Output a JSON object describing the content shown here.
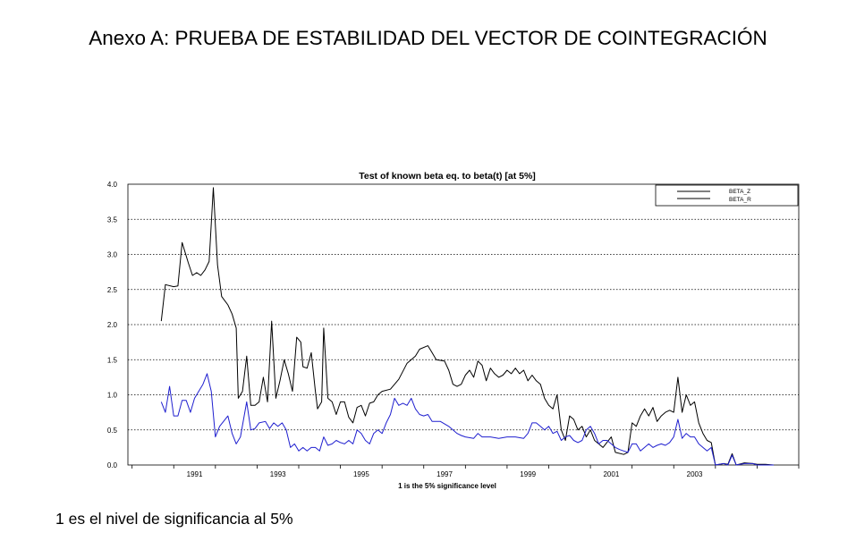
{
  "page": {
    "title": "Anexo A: PRUEBA DE ESTABILIDAD DEL VECTOR DE COINTEGRACIÓN",
    "footnote": "1 es el nivel de significancia al 5%"
  },
  "chart_data": {
    "type": "line",
    "title": "Test of known beta eq. to beta(t) [at 5%]",
    "xlabel": "1 is the 5% significance level",
    "ylabel": "",
    "xlim": [
      1989.9,
      2006.0
    ],
    "ylim": [
      0.0,
      4.0
    ],
    "yticks": [
      "0.0",
      "0.5",
      "1.0",
      "1.5",
      "2.0",
      "2.5",
      "3.0",
      "3.5",
      "4.0"
    ],
    "xticks": [
      "1991",
      "1993",
      "1995",
      "1997",
      "1999",
      "2001",
      "2003"
    ],
    "grid": "horizontal dotted",
    "legend_position": "top-right",
    "series": [
      {
        "name": "BETA_Z",
        "color": "#000000",
        "points": [
          [
            1990.7,
            2.05
          ],
          [
            1990.8,
            2.57
          ],
          [
            1991.0,
            2.54
          ],
          [
            1991.1,
            2.55
          ],
          [
            1991.2,
            3.17
          ],
          [
            1991.35,
            2.88
          ],
          [
            1991.45,
            2.7
          ],
          [
            1991.55,
            2.74
          ],
          [
            1991.65,
            2.7
          ],
          [
            1991.75,
            2.78
          ],
          [
            1991.85,
            2.9
          ],
          [
            1991.95,
            3.95
          ],
          [
            1992.05,
            2.85
          ],
          [
            1992.15,
            2.4
          ],
          [
            1992.3,
            2.28
          ],
          [
            1992.4,
            2.15
          ],
          [
            1992.5,
            1.95
          ],
          [
            1992.55,
            0.95
          ],
          [
            1992.65,
            1.05
          ],
          [
            1992.75,
            1.55
          ],
          [
            1992.85,
            0.85
          ],
          [
            1992.95,
            0.85
          ],
          [
            1993.05,
            0.9
          ],
          [
            1993.15,
            1.25
          ],
          [
            1993.25,
            0.9
          ],
          [
            1993.35,
            2.05
          ],
          [
            1993.45,
            0.95
          ],
          [
            1993.55,
            1.2
          ],
          [
            1993.65,
            1.5
          ],
          [
            1993.75,
            1.3
          ],
          [
            1993.85,
            1.05
          ],
          [
            1993.95,
            1.82
          ],
          [
            1994.05,
            1.75
          ],
          [
            1994.1,
            1.4
          ],
          [
            1994.2,
            1.38
          ],
          [
            1994.3,
            1.6
          ],
          [
            1994.4,
            1.05
          ],
          [
            1994.45,
            0.8
          ],
          [
            1994.55,
            0.9
          ],
          [
            1994.6,
            1.95
          ],
          [
            1994.7,
            0.95
          ],
          [
            1994.8,
            0.9
          ],
          [
            1994.9,
            0.72
          ],
          [
            1995.0,
            0.9
          ],
          [
            1995.1,
            0.9
          ],
          [
            1995.2,
            0.68
          ],
          [
            1995.3,
            0.6
          ],
          [
            1995.4,
            0.82
          ],
          [
            1995.5,
            0.85
          ],
          [
            1995.6,
            0.7
          ],
          [
            1995.7,
            0.88
          ],
          [
            1995.8,
            0.9
          ],
          [
            1995.9,
            1.0
          ],
          [
            1996.0,
            1.05
          ],
          [
            1996.2,
            1.08
          ],
          [
            1996.4,
            1.22
          ],
          [
            1996.6,
            1.45
          ],
          [
            1996.8,
            1.55
          ],
          [
            1996.9,
            1.65
          ],
          [
            1997.1,
            1.7
          ],
          [
            1997.2,
            1.6
          ],
          [
            1997.3,
            1.5
          ],
          [
            1997.5,
            1.48
          ],
          [
            1997.6,
            1.35
          ],
          [
            1997.7,
            1.15
          ],
          [
            1997.8,
            1.12
          ],
          [
            1997.9,
            1.15
          ],
          [
            1998.0,
            1.28
          ],
          [
            1998.1,
            1.35
          ],
          [
            1998.2,
            1.25
          ],
          [
            1998.3,
            1.48
          ],
          [
            1998.4,
            1.42
          ],
          [
            1998.5,
            1.2
          ],
          [
            1998.6,
            1.38
          ],
          [
            1998.7,
            1.3
          ],
          [
            1998.8,
            1.25
          ],
          [
            1998.9,
            1.28
          ],
          [
            1999.0,
            1.35
          ],
          [
            1999.1,
            1.3
          ],
          [
            1999.2,
            1.38
          ],
          [
            1999.3,
            1.3
          ],
          [
            1999.4,
            1.35
          ],
          [
            1999.5,
            1.2
          ],
          [
            1999.6,
            1.28
          ],
          [
            1999.7,
            1.2
          ],
          [
            1999.8,
            1.15
          ],
          [
            1999.9,
            0.95
          ],
          [
            2000.0,
            0.85
          ],
          [
            2000.1,
            0.8
          ],
          [
            2000.2,
            1.0
          ],
          [
            2000.3,
            0.5
          ],
          [
            2000.4,
            0.35
          ],
          [
            2000.5,
            0.7
          ],
          [
            2000.6,
            0.65
          ],
          [
            2000.7,
            0.5
          ],
          [
            2000.8,
            0.55
          ],
          [
            2000.9,
            0.4
          ],
          [
            2001.0,
            0.5
          ],
          [
            2001.1,
            0.35
          ],
          [
            2001.3,
            0.25
          ],
          [
            2001.5,
            0.4
          ],
          [
            2001.6,
            0.18
          ],
          [
            2001.8,
            0.15
          ],
          [
            2001.9,
            0.18
          ],
          [
            2002.0,
            0.6
          ],
          [
            2002.1,
            0.55
          ],
          [
            2002.2,
            0.7
          ],
          [
            2002.3,
            0.8
          ],
          [
            2002.4,
            0.7
          ],
          [
            2002.5,
            0.82
          ],
          [
            2002.6,
            0.62
          ],
          [
            2002.7,
            0.7
          ],
          [
            2002.8,
            0.75
          ],
          [
            2002.9,
            0.78
          ],
          [
            2003.0,
            0.75
          ],
          [
            2003.1,
            1.25
          ],
          [
            2003.2,
            0.75
          ],
          [
            2003.3,
            1.0
          ],
          [
            2003.4,
            0.85
          ],
          [
            2003.5,
            0.9
          ],
          [
            2003.6,
            0.6
          ],
          [
            2003.7,
            0.45
          ],
          [
            2003.8,
            0.35
          ],
          [
            2003.9,
            0.32
          ],
          [
            2004.0,
            0.0
          ],
          [
            2004.2,
            0.02
          ],
          [
            2004.3,
            0.01
          ],
          [
            2004.4,
            0.16
          ],
          [
            2004.5,
            0.0
          ],
          [
            2004.7,
            0.03
          ],
          [
            2004.9,
            0.02
          ],
          [
            2005.0,
            0.01
          ],
          [
            2005.2,
            0.01
          ],
          [
            2005.4,
            0.0
          ]
        ]
      },
      {
        "name": "BETA_R",
        "color": "#1f1fcf",
        "points": [
          [
            1990.7,
            0.9
          ],
          [
            1990.8,
            0.75
          ],
          [
            1990.9,
            1.12
          ],
          [
            1991.0,
            0.7
          ],
          [
            1991.1,
            0.7
          ],
          [
            1991.2,
            0.92
          ],
          [
            1991.3,
            0.92
          ],
          [
            1991.4,
            0.75
          ],
          [
            1991.5,
            0.95
          ],
          [
            1991.7,
            1.15
          ],
          [
            1991.8,
            1.3
          ],
          [
            1991.9,
            1.05
          ],
          [
            1992.0,
            0.4
          ],
          [
            1992.1,
            0.55
          ],
          [
            1992.3,
            0.7
          ],
          [
            1992.4,
            0.45
          ],
          [
            1992.5,
            0.3
          ],
          [
            1992.6,
            0.4
          ],
          [
            1992.75,
            0.9
          ],
          [
            1992.85,
            0.5
          ],
          [
            1992.95,
            0.52
          ],
          [
            1993.05,
            0.6
          ],
          [
            1993.2,
            0.62
          ],
          [
            1993.3,
            0.52
          ],
          [
            1993.4,
            0.6
          ],
          [
            1993.5,
            0.55
          ],
          [
            1993.6,
            0.6
          ],
          [
            1993.7,
            0.5
          ],
          [
            1993.8,
            0.25
          ],
          [
            1993.9,
            0.3
          ],
          [
            1994.0,
            0.2
          ],
          [
            1994.1,
            0.25
          ],
          [
            1994.2,
            0.2
          ],
          [
            1994.3,
            0.25
          ],
          [
            1994.4,
            0.25
          ],
          [
            1994.5,
            0.2
          ],
          [
            1994.6,
            0.4
          ],
          [
            1994.7,
            0.28
          ],
          [
            1994.8,
            0.3
          ],
          [
            1994.9,
            0.35
          ],
          [
            1995.0,
            0.32
          ],
          [
            1995.1,
            0.3
          ],
          [
            1995.2,
            0.35
          ],
          [
            1995.3,
            0.3
          ],
          [
            1995.4,
            0.5
          ],
          [
            1995.5,
            0.45
          ],
          [
            1995.6,
            0.35
          ],
          [
            1995.7,
            0.3
          ],
          [
            1995.8,
            0.45
          ],
          [
            1995.9,
            0.5
          ],
          [
            1996.0,
            0.45
          ],
          [
            1996.1,
            0.6
          ],
          [
            1996.2,
            0.72
          ],
          [
            1996.3,
            0.95
          ],
          [
            1996.4,
            0.85
          ],
          [
            1996.5,
            0.88
          ],
          [
            1996.6,
            0.85
          ],
          [
            1996.7,
            0.95
          ],
          [
            1996.8,
            0.8
          ],
          [
            1996.9,
            0.72
          ],
          [
            1997.0,
            0.7
          ],
          [
            1997.1,
            0.72
          ],
          [
            1997.2,
            0.62
          ],
          [
            1997.4,
            0.62
          ],
          [
            1997.6,
            0.55
          ],
          [
            1997.8,
            0.45
          ],
          [
            1997.9,
            0.42
          ],
          [
            1998.0,
            0.4
          ],
          [
            1998.2,
            0.38
          ],
          [
            1998.3,
            0.45
          ],
          [
            1998.4,
            0.4
          ],
          [
            1998.6,
            0.4
          ],
          [
            1998.8,
            0.38
          ],
          [
            1999.0,
            0.4
          ],
          [
            1999.2,
            0.4
          ],
          [
            1999.4,
            0.38
          ],
          [
            1999.5,
            0.45
          ],
          [
            1999.6,
            0.6
          ],
          [
            1999.7,
            0.6
          ],
          [
            1999.8,
            0.55
          ],
          [
            1999.9,
            0.5
          ],
          [
            2000.0,
            0.55
          ],
          [
            2000.1,
            0.45
          ],
          [
            2000.2,
            0.48
          ],
          [
            2000.3,
            0.35
          ],
          [
            2000.4,
            0.4
          ],
          [
            2000.5,
            0.42
          ],
          [
            2000.6,
            0.35
          ],
          [
            2000.7,
            0.32
          ],
          [
            2000.8,
            0.35
          ],
          [
            2000.9,
            0.5
          ],
          [
            2001.0,
            0.55
          ],
          [
            2001.1,
            0.45
          ],
          [
            2001.2,
            0.3
          ],
          [
            2001.3,
            0.35
          ],
          [
            2001.4,
            0.35
          ],
          [
            2001.5,
            0.3
          ],
          [
            2001.6,
            0.25
          ],
          [
            2001.7,
            0.22
          ],
          [
            2001.8,
            0.2
          ],
          [
            2001.9,
            0.18
          ],
          [
            2002.0,
            0.3
          ],
          [
            2002.1,
            0.3
          ],
          [
            2002.2,
            0.2
          ],
          [
            2002.3,
            0.25
          ],
          [
            2002.4,
            0.3
          ],
          [
            2002.5,
            0.25
          ],
          [
            2002.6,
            0.28
          ],
          [
            2002.7,
            0.3
          ],
          [
            2002.8,
            0.28
          ],
          [
            2002.9,
            0.32
          ],
          [
            2003.0,
            0.4
          ],
          [
            2003.1,
            0.65
          ],
          [
            2003.2,
            0.38
          ],
          [
            2003.3,
            0.45
          ],
          [
            2003.4,
            0.4
          ],
          [
            2003.5,
            0.4
          ],
          [
            2003.6,
            0.3
          ],
          [
            2003.7,
            0.25
          ],
          [
            2003.8,
            0.2
          ],
          [
            2003.9,
            0.25
          ],
          [
            2004.0,
            0.0
          ],
          [
            2004.2,
            0.02
          ],
          [
            2004.3,
            0.0
          ],
          [
            2004.4,
            0.14
          ],
          [
            2004.5,
            0.0
          ],
          [
            2004.7,
            0.02
          ],
          [
            2004.9,
            0.02
          ],
          [
            2005.0,
            0.0
          ],
          [
            2005.2,
            0.0
          ],
          [
            2005.4,
            0.0
          ]
        ]
      }
    ]
  }
}
